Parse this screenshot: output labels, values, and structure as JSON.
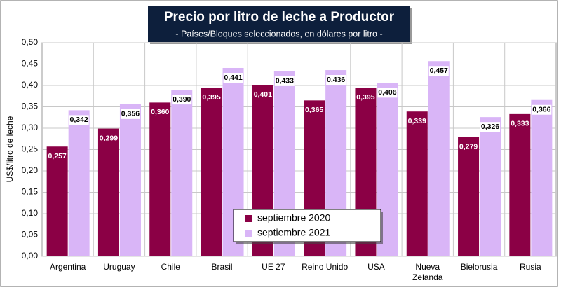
{
  "chart_data": {
    "type": "bar",
    "title": "Precio por litro de leche a Productor",
    "subtitle": "- Países/Bloques seleccionados, en dólares por litro -",
    "y_label": "US$/litro de leche",
    "categories": [
      "Argentina",
      "Uruguay",
      "Chile",
      "Brasil",
      "UE 27",
      "Reino Unido",
      "USA",
      "Nueva Zelanda",
      "Bielorusia",
      "Rusia"
    ],
    "series": [
      {
        "name": "septiembre 2020",
        "color": "#8b0045",
        "values": [
          0.257,
          0.299,
          0.36,
          0.395,
          0.401,
          0.365,
          0.395,
          0.339,
          0.279,
          0.333
        ],
        "value_labels": [
          "0,257",
          "0,299",
          "0,360",
          "0,395",
          "0,401",
          "0,365",
          "0,395",
          "0,339",
          "0,279",
          "0,333"
        ]
      },
      {
        "name": "septiembre 2021",
        "color": "#d9b5f7",
        "values": [
          0.342,
          0.356,
          0.39,
          0.441,
          0.433,
          0.436,
          0.406,
          0.457,
          0.326,
          0.366
        ],
        "value_labels": [
          "0,342",
          "0,356",
          "0,390",
          "0,441",
          "0,433",
          "0,436",
          "0,406",
          "0,457",
          "0,326",
          "0,366"
        ]
      }
    ],
    "ylim": [
      0,
      0.5
    ],
    "yticks": [
      {
        "value": 0,
        "label": "0,00"
      },
      {
        "value": 0.05,
        "label": "0,05"
      },
      {
        "value": 0.1,
        "label": "0,10"
      },
      {
        "value": 0.15,
        "label": "0,15"
      },
      {
        "value": 0.2,
        "label": "0,20"
      },
      {
        "value": 0.25,
        "label": "0,25"
      },
      {
        "value": 0.3,
        "label": "0,30"
      },
      {
        "value": 0.35,
        "label": "0,35"
      },
      {
        "value": 0.4,
        "label": "0,40"
      },
      {
        "value": 0.45,
        "label": "0,45"
      },
      {
        "value": 0.5,
        "label": "0,50"
      }
    ],
    "grid": true
  }
}
